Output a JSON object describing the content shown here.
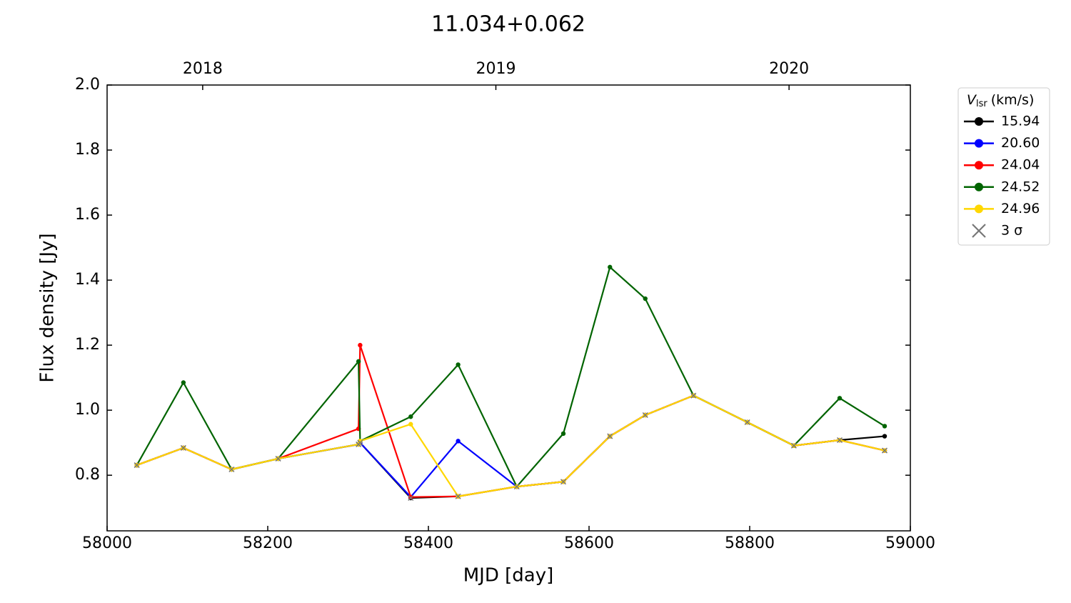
{
  "chart_data": {
    "type": "line",
    "title": "11.034+0.062",
    "xlabel": "MJD [day]",
    "ylabel": "Flux density [Jy]",
    "x": [
      58037,
      58095,
      58155,
      58213,
      58313,
      58315,
      58378,
      58437,
      58510,
      58568,
      58626,
      58670,
      58730,
      58797,
      58855,
      58912,
      58968
    ],
    "series": [
      {
        "name": "15.94",
        "color": "#000000",
        "marker": "o",
        "values": [
          0.831,
          0.884,
          0.818,
          0.851,
          0.895,
          0.9,
          0.73,
          0.735,
          0.765,
          0.78,
          0.92,
          0.985,
          1.045,
          0.963,
          0.891,
          0.908,
          0.92
        ]
      },
      {
        "name": "20.60",
        "color": "#0000ff",
        "marker": "o",
        "values": [
          0.831,
          0.884,
          0.818,
          0.851,
          0.895,
          0.9,
          0.733,
          0.905,
          0.765,
          0.78,
          0.92,
          0.985,
          1.045,
          0.963,
          0.891,
          0.908,
          0.876
        ]
      },
      {
        "name": "24.04",
        "color": "#ff0000",
        "marker": "o",
        "values": [
          0.831,
          0.884,
          0.818,
          0.851,
          0.943,
          1.2,
          0.733,
          0.735,
          0.765,
          0.78,
          0.92,
          0.985,
          1.045,
          0.963,
          0.891,
          0.908,
          0.876
        ]
      },
      {
        "name": "24.52",
        "color": "#006400",
        "marker": "o",
        "values": [
          0.831,
          1.085,
          0.818,
          0.851,
          1.15,
          0.905,
          0.98,
          1.14,
          0.765,
          0.928,
          1.44,
          1.343,
          1.045,
          0.963,
          0.891,
          1.037,
          0.951
        ]
      },
      {
        "name": "24.96",
        "color": "#ffd700",
        "marker": "o",
        "values": [
          0.831,
          0.884,
          0.818,
          0.851,
          0.895,
          0.905,
          0.957,
          0.735,
          0.765,
          0.78,
          0.92,
          0.985,
          1.045,
          0.963,
          0.891,
          0.908,
          0.876
        ]
      },
      {
        "name": "3 σ",
        "color": "#777777",
        "marker": "x",
        "values": [
          0.831,
          0.884,
          0.818,
          0.851,
          0.895,
          0.9,
          0.73,
          0.735,
          0.765,
          0.78,
          0.92,
          0.985,
          1.045,
          0.963,
          0.891,
          0.908,
          0.876
        ]
      }
    ],
    "legend_title": {
      "symbol": "V",
      "subscript": "lsr",
      "unit": "(km/s)"
    },
    "legend_position": "outside-right",
    "xlim": [
      58000,
      59000
    ],
    "xticks": [
      58000,
      58200,
      58400,
      58600,
      58800,
      59000
    ],
    "x2ticks": [
      {
        "value": 58119,
        "label": "2018"
      },
      {
        "value": 58484,
        "label": "2019"
      },
      {
        "value": 58849,
        "label": "2020"
      }
    ],
    "ylim": [
      0.629,
      2.0
    ],
    "yticks": [
      0.8,
      {
        "value": 1,
        "label": "1.0"
      },
      1.2,
      1.4,
      1.6,
      1.8,
      {
        "value": 2,
        "label": "2.0"
      }
    ],
    "grid": false
  }
}
